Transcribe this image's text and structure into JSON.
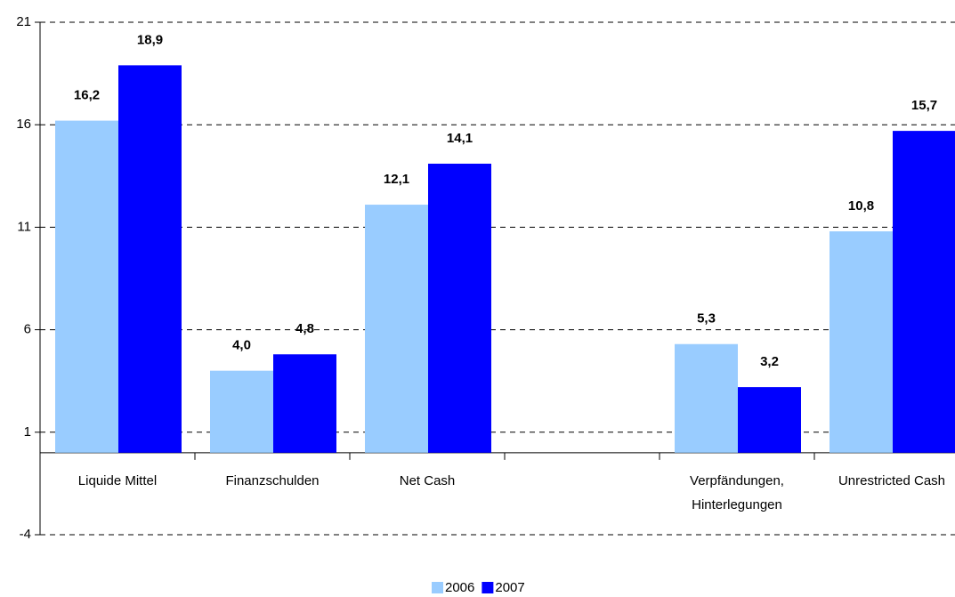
{
  "chart_data": {
    "type": "bar",
    "categories": [
      "Liquide Mittel",
      "Finanzschulden",
      "Net Cash",
      null,
      "Verpfändungen, Hinterlegungen",
      "Unrestricted Cash"
    ],
    "series": [
      {
        "name": "2006",
        "color": "#99ccff",
        "values": [
          16.2,
          4.0,
          12.1,
          null,
          5.3,
          10.8
        ],
        "value_labels": [
          "16,2",
          "4,0",
          "12,1",
          null,
          "5,3",
          "10,8"
        ]
      },
      {
        "name": "2007",
        "color": "#0000ff",
        "values": [
          18.9,
          4.8,
          14.1,
          null,
          3.2,
          15.7
        ],
        "value_labels": [
          "18,9",
          "4,8",
          "14,1",
          null,
          "3,2",
          "15,7"
        ]
      }
    ],
    "ylim": [
      -4,
      21
    ],
    "yticks": [
      -4,
      1,
      6,
      11,
      16,
      21
    ],
    "grid": true,
    "legend": "bottom"
  }
}
